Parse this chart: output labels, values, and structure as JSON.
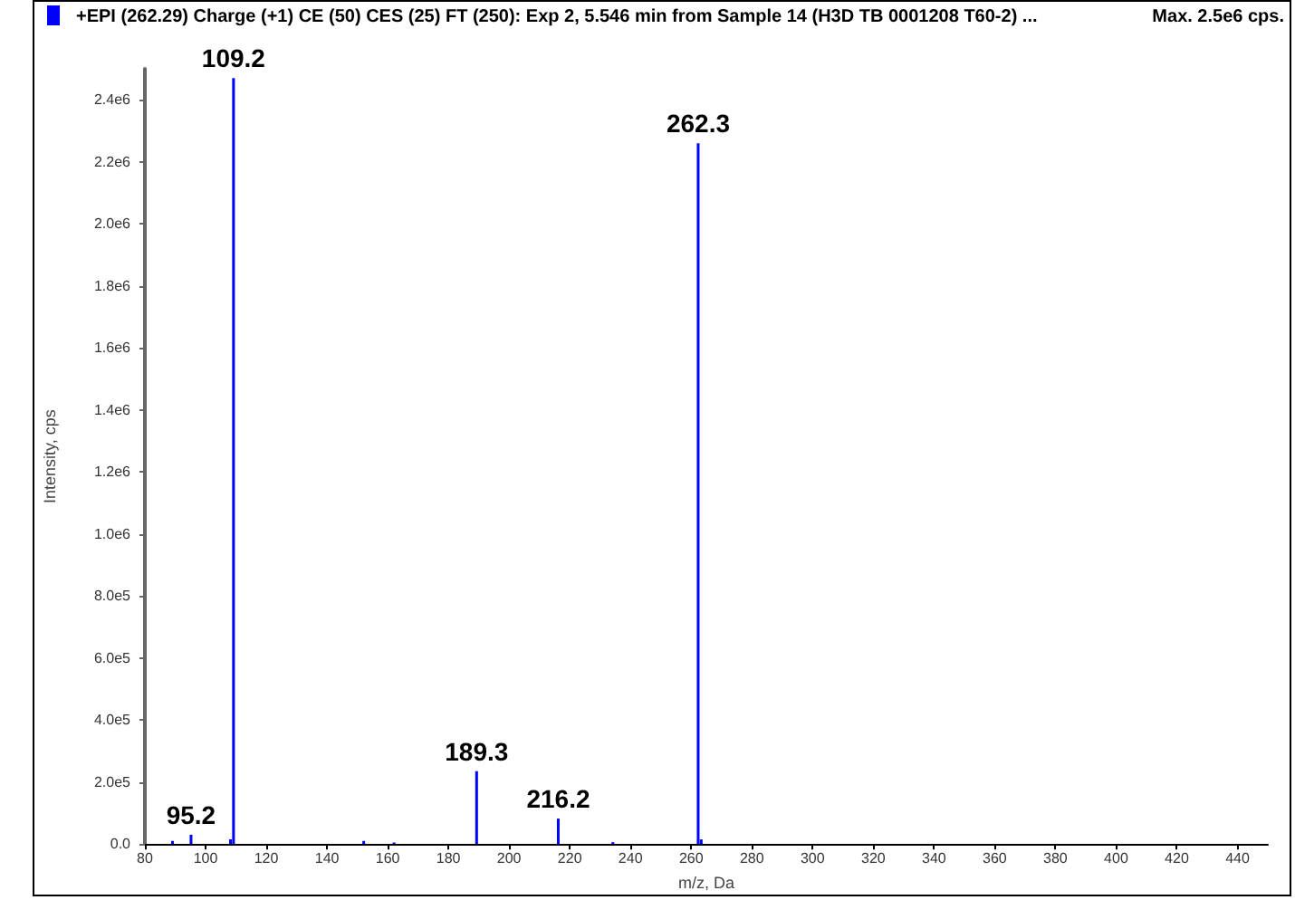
{
  "chart_data": {
    "type": "bar",
    "title": "+EPI (262.29) Charge (+1) CE (50) CES (25) FT (250): Exp 2, 5.546 min from Sample 14 (H3D TB 0001208 T60-2) ...",
    "xlabel": "m/z, Da",
    "ylabel": "Intensity, cps",
    "x": [
      89.1,
      95.2,
      108.2,
      109.2,
      152.1,
      162.1,
      189.3,
      216.2,
      234.2,
      262.3,
      263.3
    ],
    "series": [
      {
        "color": "#0000ff",
        "values": [
          10000,
          30000,
          15000,
          2470000,
          10000,
          5000,
          235000,
          82000,
          6000,
          2260000,
          15000
        ]
      }
    ],
    "xlim": [
      80,
      450
    ],
    "xticks": [
      80,
      100,
      120,
      140,
      160,
      180,
      200,
      220,
      240,
      260,
      280,
      300,
      320,
      340,
      360,
      380,
      400,
      420,
      440
    ],
    "ylim": [
      0,
      2500000
    ],
    "yticks": [
      {
        "value": 0,
        "label": "0.0"
      },
      {
        "value": 200000,
        "label": "2.0e5"
      },
      {
        "value": 400000,
        "label": "4.0e5"
      },
      {
        "value": 600000,
        "label": "6.0e5"
      },
      {
        "value": 800000,
        "label": "8.0e5"
      },
      {
        "value": 1000000,
        "label": "1.0e6"
      },
      {
        "value": 1200000,
        "label": "1.2e6"
      },
      {
        "value": 1400000,
        "label": "1.4e6"
      },
      {
        "value": 1600000,
        "label": "1.6e6"
      },
      {
        "value": 1800000,
        "label": "1.8e6"
      },
      {
        "value": 2000000,
        "label": "2.0e6"
      },
      {
        "value": 2200000,
        "label": "2.2e6"
      },
      {
        "value": 2400000,
        "label": "2.4e6"
      }
    ],
    "grid": false,
    "annotations": [
      "Max. 2.5e6 cps.",
      {
        "text": "95.2",
        "x": 95.2,
        "y": 30000
      },
      {
        "text": "109.2",
        "x": 109.2,
        "y": 2470000
      },
      {
        "text": "189.3",
        "x": 189.3,
        "y": 235000
      },
      {
        "text": "216.2",
        "x": 216.2,
        "y": 82000
      },
      {
        "text": "262.3",
        "x": 262.3,
        "y": 2260000
      }
    ]
  }
}
